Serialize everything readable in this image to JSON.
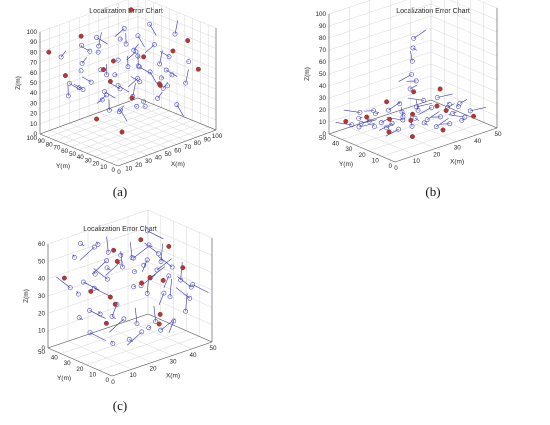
{
  "chart_data": [
    {
      "type": "scatter",
      "title": "Localization Error Chart",
      "caption": "(a)",
      "xlabel": "X(m)",
      "ylabel": "Y(m)",
      "zlabel": "Z(m)",
      "xticks": [
        "0",
        "10",
        "20",
        "30",
        "40",
        "50",
        "60",
        "70",
        "80",
        "90",
        "100"
      ],
      "yticks": [
        "0",
        "10",
        "20",
        "30",
        "40",
        "50",
        "60",
        "70",
        "80",
        "90",
        "100"
      ],
      "zticks": [
        "0",
        "10",
        "20",
        "30",
        "40",
        "50",
        "60",
        "70",
        "80",
        "90",
        "100"
      ],
      "xlim": [
        0,
        100
      ],
      "ylim": [
        0,
        100
      ],
      "zlim": [
        0,
        100
      ],
      "anchor_color": "#b03a3a",
      "node_color": "#4545c8",
      "anchors": [
        [
          5,
          95,
          80
        ],
        [
          10,
          80,
          60
        ],
        [
          90,
          10,
          60
        ],
        [
          95,
          30,
          80
        ],
        [
          60,
          5,
          90
        ],
        [
          85,
          90,
          95
        ],
        [
          20,
          20,
          20
        ],
        [
          70,
          70,
          20
        ],
        [
          40,
          60,
          50
        ],
        [
          10,
          40,
          30
        ],
        [
          50,
          30,
          80
        ],
        [
          75,
          40,
          40
        ],
        [
          30,
          85,
          90
        ],
        [
          55,
          75,
          60
        ],
        [
          25,
          50,
          70
        ],
        [
          90,
          60,
          30
        ]
      ],
      "nodes": [
        [
          12,
          88,
          75
        ],
        [
          18,
          70,
          65
        ],
        [
          22,
          62,
          55
        ],
        [
          30,
          55,
          45
        ],
        [
          35,
          48,
          62
        ],
        [
          42,
          40,
          70
        ],
        [
          48,
          35,
          58
        ],
        [
          55,
          28,
          64
        ],
        [
          60,
          22,
          72
        ],
        [
          65,
          18,
          50
        ],
        [
          70,
          30,
          42
        ],
        [
          75,
          25,
          55
        ],
        [
          80,
          35,
          68
        ],
        [
          85,
          45,
          50
        ],
        [
          88,
          55,
          38
        ],
        [
          15,
          30,
          40
        ],
        [
          20,
          40,
          50
        ],
        [
          28,
          32,
          35
        ],
        [
          35,
          25,
          48
        ],
        [
          42,
          18,
          38
        ],
        [
          50,
          12,
          45
        ],
        [
          58,
          40,
          30
        ],
        [
          62,
          50,
          45
        ],
        [
          68,
          58,
          55
        ],
        [
          72,
          65,
          62
        ],
        [
          78,
          72,
          48
        ],
        [
          82,
          80,
          58
        ],
        [
          88,
          85,
          70
        ],
        [
          40,
          75,
          80
        ],
        [
          45,
          82,
          70
        ],
        [
          35,
          90,
          60
        ],
        [
          25,
          78,
          85
        ],
        [
          15,
          55,
          90
        ],
        [
          30,
          65,
          95
        ],
        [
          50,
          60,
          88
        ],
        [
          60,
          65,
          78
        ],
        [
          70,
          80,
          85
        ],
        [
          80,
          60,
          92
        ],
        [
          90,
          40,
          85
        ],
        [
          55,
          45,
          25
        ],
        [
          45,
          55,
          20
        ],
        [
          38,
          68,
          30
        ],
        [
          28,
          80,
          40
        ],
        [
          18,
          85,
          48
        ],
        [
          8,
          60,
          55
        ],
        [
          5,
          70,
          45
        ],
        [
          65,
          35,
          85
        ],
        [
          72,
          15,
          30
        ],
        [
          85,
          20,
          45
        ],
        [
          92,
          25,
          62
        ],
        [
          40,
          30,
          90
        ],
        [
          32,
          40,
          80
        ],
        [
          22,
          25,
          60
        ],
        [
          12,
          15,
          70
        ],
        [
          50,
          85,
          50
        ],
        [
          60,
          90,
          40
        ]
      ],
      "errors": [
        [
          0,
          -3,
          4
        ],
        [
          2,
          3,
          -2
        ],
        [
          -3,
          2,
          3
        ],
        [
          4,
          -2,
          -4
        ],
        [
          -2,
          -4,
          2
        ],
        [
          3,
          4,
          3
        ],
        [
          -4,
          1,
          -3
        ],
        [
          1,
          -3,
          -5
        ],
        [
          3,
          2,
          5
        ],
        [
          -3,
          -3,
          2
        ]
      ]
    },
    {
      "type": "scatter",
      "title": "Localization Error Chart",
      "caption": "(b)",
      "xlabel": "X(m)",
      "ylabel": "Y(m)",
      "zlabel": "Z(m)",
      "xticks": [
        "0",
        "10",
        "20",
        "30",
        "40",
        "50"
      ],
      "yticks": [
        "0",
        "10",
        "20",
        "30",
        "40",
        "50"
      ],
      "zticks": [
        "0",
        "10",
        "20",
        "30",
        "40",
        "50",
        "60",
        "70",
        "80",
        "90",
        "100"
      ],
      "xlim": [
        0,
        50
      ],
      "ylim": [
        0,
        50
      ],
      "zlim": [
        0,
        100
      ],
      "anchor_color": "#b03a3a",
      "node_color": "#4545c8",
      "anchors": [
        [
          5,
          45,
          10
        ],
        [
          12,
          40,
          12
        ],
        [
          20,
          35,
          8
        ],
        [
          28,
          30,
          10
        ],
        [
          38,
          20,
          12
        ],
        [
          45,
          10,
          8
        ],
        [
          10,
          20,
          10
        ],
        [
          25,
          45,
          15
        ],
        [
          35,
          40,
          20
        ],
        [
          40,
          30,
          10
        ],
        [
          30,
          10,
          5
        ],
        [
          48,
          40,
          15
        ],
        [
          15,
          10,
          8
        ],
        [
          22,
          22,
          12
        ]
      ],
      "nodes": [
        [
          6,
          42,
          8
        ],
        [
          8,
          38,
          10
        ],
        [
          10,
          35,
          12
        ],
        [
          14,
          32,
          10
        ],
        [
          18,
          30,
          8
        ],
        [
          22,
          28,
          12
        ],
        [
          26,
          25,
          10
        ],
        [
          30,
          22,
          8
        ],
        [
          34,
          18,
          10
        ],
        [
          38,
          15,
          12
        ],
        [
          42,
          12,
          8
        ],
        [
          46,
          14,
          10
        ],
        [
          8,
          28,
          12
        ],
        [
          12,
          25,
          10
        ],
        [
          16,
          22,
          8
        ],
        [
          20,
          18,
          10
        ],
        [
          24,
          15,
          12
        ],
        [
          28,
          12,
          8
        ],
        [
          32,
          8,
          10
        ],
        [
          36,
          5,
          12
        ],
        [
          40,
          40,
          10
        ],
        [
          44,
          36,
          12
        ],
        [
          46,
          30,
          8
        ],
        [
          42,
          25,
          10
        ],
        [
          36,
          28,
          12
        ],
        [
          32,
          32,
          10
        ],
        [
          28,
          38,
          8
        ],
        [
          24,
          42,
          10
        ],
        [
          18,
          44,
          12
        ],
        [
          12,
          46,
          8
        ],
        [
          20,
          25,
          12
        ],
        [
          30,
          30,
          15
        ],
        [
          25,
          35,
          18
        ],
        [
          32,
          38,
          25
        ],
        [
          34,
          40,
          35
        ],
        [
          35,
          41,
          45
        ],
        [
          36,
          42,
          55
        ],
        [
          37,
          43,
          62
        ],
        [
          35,
          38,
          30
        ],
        [
          15,
          38,
          14
        ],
        [
          10,
          42,
          16
        ],
        [
          5,
          35,
          10
        ],
        [
          44,
          20,
          12
        ],
        [
          48,
          25,
          10
        ]
      ],
      "errors": [
        [
          -6,
          3,
          2
        ],
        [
          5,
          -4,
          1
        ],
        [
          -4,
          -5,
          3
        ],
        [
          6,
          4,
          -1
        ],
        [
          -5,
          2,
          -2
        ],
        [
          3,
          6,
          2
        ],
        [
          -2,
          -6,
          1
        ],
        [
          4,
          -3,
          3
        ],
        [
          -6,
          -2,
          2
        ],
        [
          5,
          5,
          -2
        ]
      ]
    },
    {
      "type": "scatter",
      "title": "Localization Error Chart",
      "caption": "(c)",
      "xlabel": "X(m)",
      "ylabel": "Y(m)",
      "zlabel": "Z(m)",
      "xticks": [
        "0",
        "10",
        "20",
        "30",
        "40",
        "50"
      ],
      "yticks": [
        "0",
        "10",
        "20",
        "30",
        "40",
        "50"
      ],
      "zticks": [
        "0",
        "10",
        "20",
        "30",
        "40",
        "50",
        "60"
      ],
      "xlim": [
        0,
        50
      ],
      "ylim": [
        0,
        50
      ],
      "zlim": [
        0,
        60
      ],
      "anchor_color": "#b03a3a",
      "node_color": "#4545c8",
      "anchors": [
        [
          5,
          45,
          40
        ],
        [
          15,
          40,
          30
        ],
        [
          25,
          35,
          45
        ],
        [
          35,
          25,
          35
        ],
        [
          45,
          15,
          40
        ],
        [
          10,
          20,
          20
        ],
        [
          30,
          10,
          15
        ],
        [
          40,
          40,
          50
        ],
        [
          20,
          30,
          55
        ],
        [
          48,
          35,
          25
        ],
        [
          8,
          10,
          35
        ],
        [
          28,
          45,
          20
        ],
        [
          38,
          15,
          55
        ],
        [
          18,
          5,
          45
        ],
        [
          42,
          28,
          10
        ]
      ],
      "nodes": [
        [
          6,
          42,
          35
        ],
        [
          10,
          38,
          38
        ],
        [
          14,
          35,
          42
        ],
        [
          18,
          32,
          45
        ],
        [
          22,
          28,
          48
        ],
        [
          26,
          25,
          50
        ],
        [
          30,
          22,
          45
        ],
        [
          34,
          18,
          42
        ],
        [
          38,
          15,
          38
        ],
        [
          42,
          12,
          35
        ],
        [
          46,
          10,
          30
        ],
        [
          8,
          30,
          25
        ],
        [
          12,
          28,
          22
        ],
        [
          16,
          25,
          20
        ],
        [
          20,
          22,
          18
        ],
        [
          24,
          18,
          15
        ],
        [
          28,
          15,
          12
        ],
        [
          32,
          12,
          10
        ],
        [
          36,
          8,
          15
        ],
        [
          40,
          5,
          20
        ],
        [
          44,
          8,
          25
        ],
        [
          48,
          12,
          30
        ],
        [
          10,
          45,
          50
        ],
        [
          15,
          48,
          55
        ],
        [
          20,
          45,
          52
        ],
        [
          25,
          42,
          48
        ],
        [
          30,
          40,
          45
        ],
        [
          35,
          38,
          42
        ],
        [
          40,
          35,
          40
        ],
        [
          45,
          32,
          38
        ],
        [
          48,
          28,
          35
        ],
        [
          5,
          25,
          15
        ],
        [
          10,
          15,
          10
        ],
        [
          15,
          10,
          12
        ],
        [
          20,
          8,
          15
        ],
        [
          25,
          5,
          20
        ],
        [
          30,
          30,
          30
        ],
        [
          35,
          32,
          28
        ],
        [
          40,
          22,
          25
        ],
        [
          45,
          25,
          20
        ],
        [
          22,
          38,
          35
        ],
        [
          18,
          42,
          30
        ],
        [
          12,
          45,
          28
        ],
        [
          6,
          35,
          20
        ],
        [
          28,
          48,
          40
        ],
        [
          34,
          45,
          35
        ],
        [
          40,
          45,
          30
        ],
        [
          46,
          42,
          25
        ],
        [
          14,
          18,
          30
        ],
        [
          24,
          10,
          35
        ],
        [
          36,
          20,
          50
        ],
        [
          42,
          38,
          55
        ],
        [
          16,
          36,
          58
        ],
        [
          30,
          18,
          58
        ]
      ],
      "errors": [
        [
          -5,
          3,
          6
        ],
        [
          6,
          -3,
          -5
        ],
        [
          -4,
          -5,
          4
        ],
        [
          5,
          5,
          -4
        ],
        [
          -6,
          2,
          -5
        ],
        [
          3,
          6,
          5
        ],
        [
          -3,
          -6,
          3
        ],
        [
          6,
          -2,
          4
        ],
        [
          -5,
          -4,
          -3
        ],
        [
          4,
          5,
          6
        ]
      ]
    }
  ]
}
